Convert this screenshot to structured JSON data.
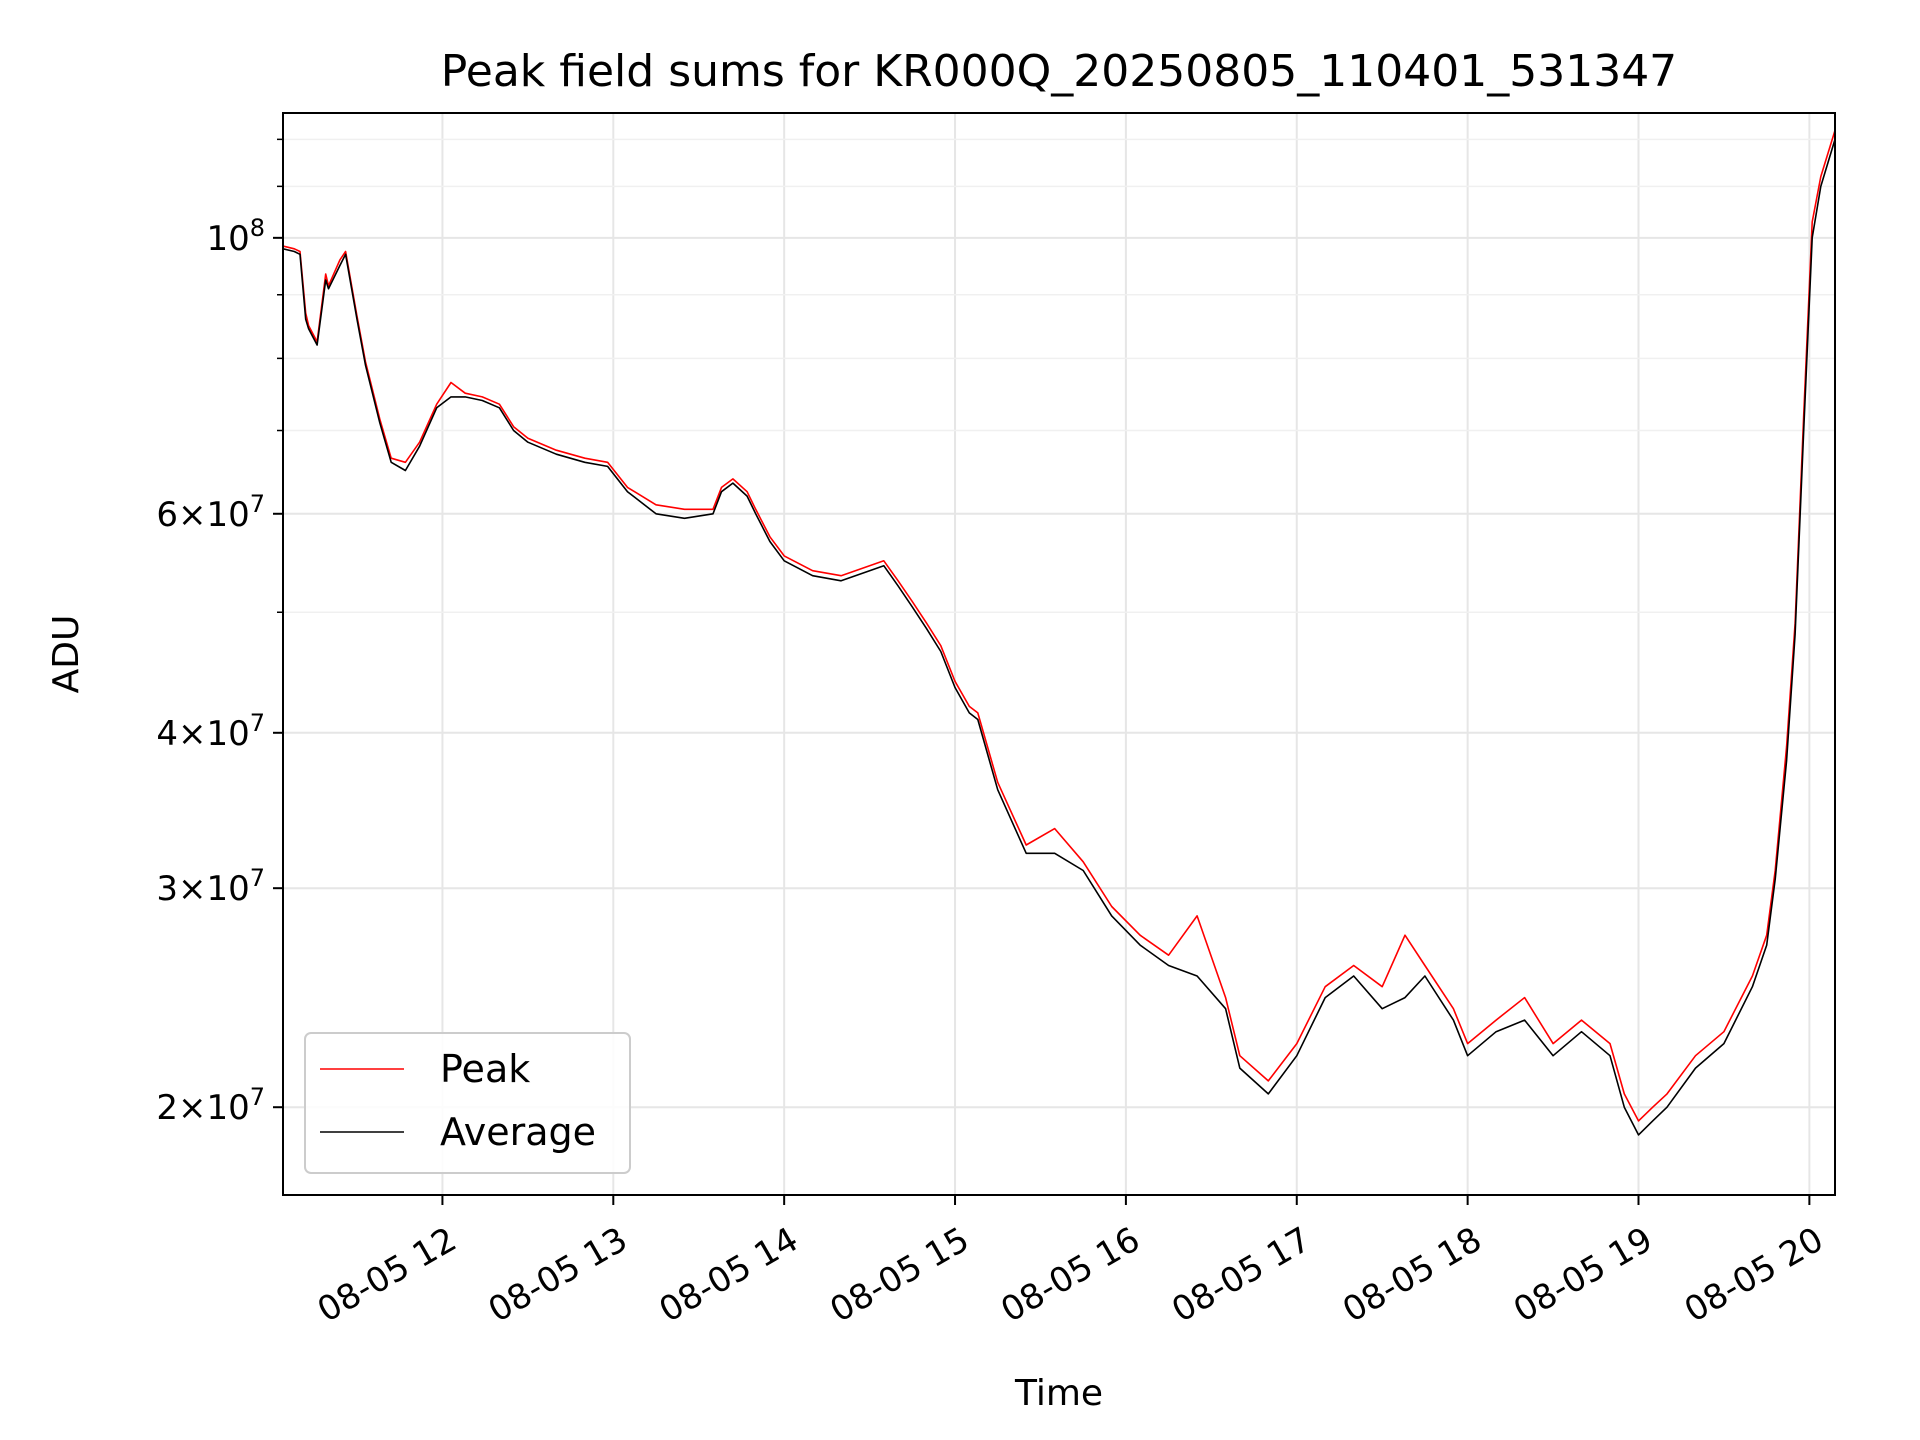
{
  "chart_data": {
    "type": "line",
    "title": "Peak field sums for KR000Q_20250805_110401_531347",
    "xlabel": "Time",
    "ylabel": "ADU",
    "y_scale": "log",
    "ylim": [
      17000000,
      126000000
    ],
    "xlim": [
      "2025-08-05T11:04:01",
      "2025-08-05T20:09:00"
    ],
    "grid": true,
    "legend": {
      "placement": "lower-left",
      "entries": [
        "Peak",
        "Average"
      ]
    },
    "colors": {
      "Peak": "#ff0000",
      "Average": "#000000"
    },
    "x_ticks": [
      {
        "value": "2025-08-05T12:00",
        "label": "08-05 12"
      },
      {
        "value": "2025-08-05T13:00",
        "label": "08-05 13"
      },
      {
        "value": "2025-08-05T14:00",
        "label": "08-05 14"
      },
      {
        "value": "2025-08-05T15:00",
        "label": "08-05 15"
      },
      {
        "value": "2025-08-05T16:00",
        "label": "08-05 16"
      },
      {
        "value": "2025-08-05T17:00",
        "label": "08-05 17"
      },
      {
        "value": "2025-08-05T18:00",
        "label": "08-05 18"
      },
      {
        "value": "2025-08-05T19:00",
        "label": "08-05 19"
      },
      {
        "value": "2025-08-05T20:00",
        "label": "08-05 20"
      }
    ],
    "y_ticks": [
      {
        "value": 20000000,
        "mantissa": "2",
        "base": "10",
        "exp": "7"
      },
      {
        "value": 30000000,
        "mantissa": "3",
        "base": "10",
        "exp": "7"
      },
      {
        "value": 40000000,
        "mantissa": "4",
        "base": "10",
        "exp": "7"
      },
      {
        "value": 60000000,
        "mantissa": "6",
        "base": "10",
        "exp": "7"
      },
      {
        "value": 100000000,
        "mantissa": "",
        "base": "10",
        "exp": "8"
      }
    ],
    "y_minor_ticks": [
      50000000,
      70000000,
      80000000,
      90000000,
      110000000,
      120000000
    ],
    "series": [
      {
        "name": "Average",
        "x": [
          "11:04",
          "11:08",
          "11:10",
          "11:12",
          "11:13",
          "11:16",
          "11:19",
          "11:20",
          "11:24",
          "11:26",
          "11:30",
          "11:33",
          "11:38",
          "11:42",
          "11:47",
          "11:52",
          "11:58",
          "12:03",
          "12:08",
          "12:14",
          "12:20",
          "12:25",
          "12:30",
          "12:40",
          "12:50",
          "12:58",
          "13:05",
          "13:15",
          "13:25",
          "13:35",
          "13:38",
          "13:42",
          "13:47",
          "13:50",
          "13:55",
          "14:00",
          "14:10",
          "14:20",
          "14:30",
          "14:35",
          "14:40",
          "14:45",
          "14:50",
          "14:55",
          "15:00",
          "15:05",
          "15:08",
          "15:15",
          "15:25",
          "15:35",
          "15:45",
          "15:55",
          "16:05",
          "16:15",
          "16:25",
          "16:35",
          "16:40",
          "16:50",
          "17:00",
          "17:10",
          "17:20",
          "17:30",
          "17:38",
          "17:45",
          "17:55",
          "18:00",
          "18:10",
          "18:20",
          "18:30",
          "18:40",
          "18:50",
          "18:55",
          "19:00",
          "19:05",
          "19:10",
          "19:20",
          "19:30",
          "19:40",
          "19:45",
          "19:48",
          "19:52",
          "19:55",
          "19:58",
          "20:01",
          "20:04",
          "20:09"
        ],
        "y": [
          98000000,
          97500000,
          97000000,
          86000000,
          84500000,
          82000000,
          92500000,
          91000000,
          95000000,
          97000000,
          86000000,
          79000000,
          71000000,
          66000000,
          65000000,
          68000000,
          73000000,
          74500000,
          74500000,
          74000000,
          73000000,
          70000000,
          68500000,
          67000000,
          66000000,
          65500000,
          62500000,
          60000000,
          59500000,
          60000000,
          62500000,
          63500000,
          62000000,
          60000000,
          57000000,
          55000000,
          53500000,
          53000000,
          54000000,
          54500000,
          52500000,
          50500000,
          48500000,
          46500000,
          43500000,
          41500000,
          41000000,
          36000000,
          32000000,
          32000000,
          31000000,
          28500000,
          27000000,
          26000000,
          25500000,
          24000000,
          21500000,
          20500000,
          22000000,
          24500000,
          25500000,
          24000000,
          24500000,
          25500000,
          23500000,
          22000000,
          23000000,
          23500000,
          22000000,
          23000000,
          22000000,
          20000000,
          19000000,
          19500000,
          20000000,
          21500000,
          22500000,
          25000000,
          27000000,
          30500000,
          38000000,
          48000000,
          70000000,
          100000000,
          110000000,
          120000000
        ]
      },
      {
        "name": "Peak",
        "x": [
          "11:04",
          "11:08",
          "11:10",
          "11:12",
          "11:13",
          "11:16",
          "11:19",
          "11:20",
          "11:24",
          "11:26",
          "11:30",
          "11:33",
          "11:38",
          "11:42",
          "11:47",
          "11:52",
          "11:58",
          "12:03",
          "12:08",
          "12:14",
          "12:20",
          "12:25",
          "12:30",
          "12:40",
          "12:50",
          "12:58",
          "13:05",
          "13:15",
          "13:25",
          "13:35",
          "13:38",
          "13:42",
          "13:47",
          "13:50",
          "13:55",
          "14:00",
          "14:10",
          "14:20",
          "14:30",
          "14:35",
          "14:40",
          "14:45",
          "14:50",
          "14:55",
          "15:00",
          "15:05",
          "15:08",
          "15:15",
          "15:25",
          "15:35",
          "15:45",
          "15:55",
          "16:05",
          "16:15",
          "16:25",
          "16:35",
          "16:40",
          "16:50",
          "17:00",
          "17:10",
          "17:20",
          "17:30",
          "17:38",
          "17:45",
          "17:55",
          "18:00",
          "18:10",
          "18:20",
          "18:30",
          "18:40",
          "18:50",
          "18:55",
          "19:00",
          "19:05",
          "19:10",
          "19:20",
          "19:30",
          "19:40",
          "19:45",
          "19:48",
          "19:52",
          "19:55",
          "19:58",
          "20:01",
          "20:04",
          "20:09"
        ],
        "y": [
          98500000,
          98000000,
          97500000,
          87000000,
          85000000,
          82500000,
          93500000,
          91500000,
          96000000,
          97500000,
          86500000,
          79500000,
          71500000,
          66500000,
          66000000,
          68500000,
          73500000,
          76500000,
          75000000,
          74500000,
          73500000,
          70500000,
          69000000,
          67500000,
          66500000,
          66000000,
          63000000,
          61000000,
          60500000,
          60500000,
          63000000,
          64000000,
          62500000,
          60500000,
          57500000,
          55500000,
          54000000,
          53500000,
          54500000,
          55000000,
          53000000,
          51000000,
          49000000,
          47000000,
          44000000,
          42000000,
          41500000,
          36500000,
          32500000,
          33500000,
          31500000,
          29000000,
          27500000,
          26500000,
          28500000,
          24500000,
          22000000,
          21000000,
          22500000,
          25000000,
          26000000,
          25000000,
          27500000,
          26000000,
          24000000,
          22500000,
          23500000,
          24500000,
          22500000,
          23500000,
          22500000,
          20500000,
          19500000,
          20000000,
          20500000,
          22000000,
          23000000,
          25500000,
          27500000,
          31000000,
          39000000,
          49000000,
          72000000,
          103000000,
          112000000,
          122000000
        ]
      }
    ]
  }
}
